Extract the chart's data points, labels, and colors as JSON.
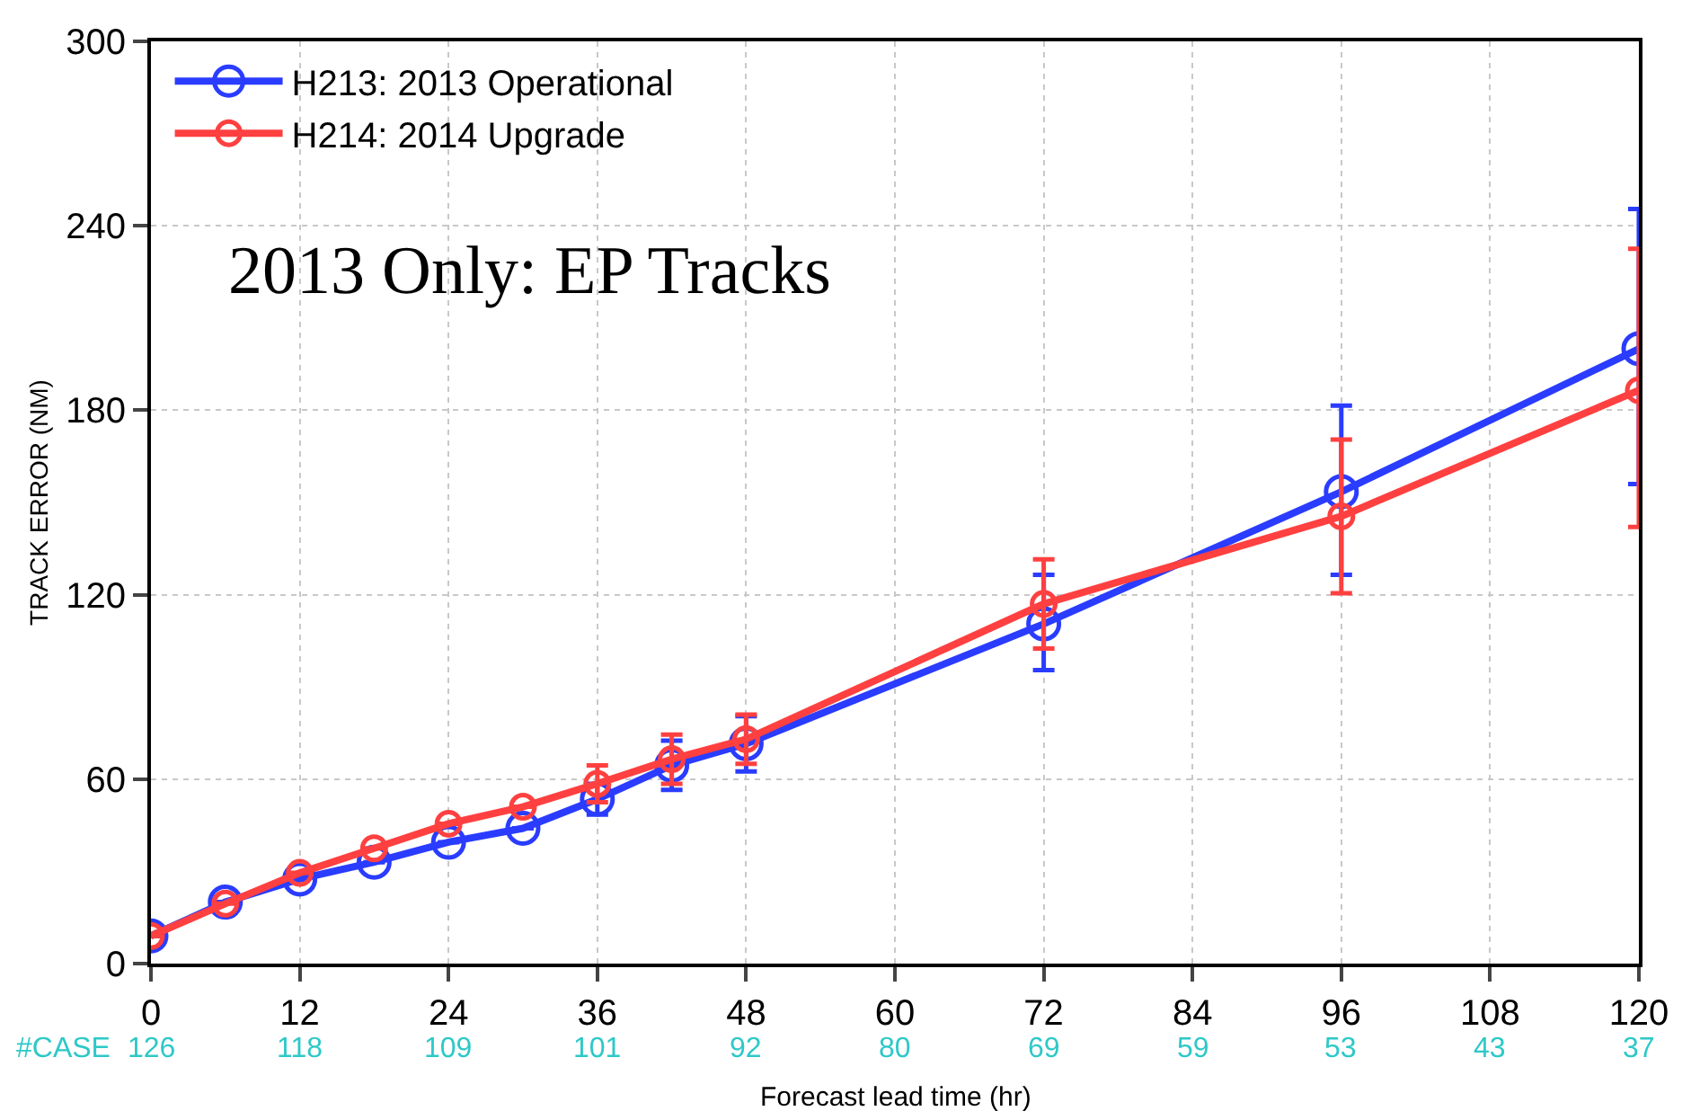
{
  "chart_data": {
    "type": "line",
    "title": "2013 Only: EP Tracks",
    "xlabel": "Forecast lead time (hr)",
    "ylabel": "TRACK ERROR (NM)",
    "x": [
      0,
      6,
      12,
      18,
      24,
      30,
      36,
      42,
      48,
      72,
      96,
      120
    ],
    "series": [
      {
        "name": "H213: 2013 Operational",
        "color": "#2a3cff",
        "values": [
          9,
          20,
          27.5,
          33,
          39.5,
          44,
          53.5,
          64.5,
          71.5,
          110.5,
          153.5,
          200
        ],
        "errors": [
          null,
          null,
          null,
          null,
          null,
          null,
          5,
          8,
          9,
          [
            95.5,
            126.5
          ],
          [
            126.5,
            181.5
          ],
          [
            156,
            245.5
          ]
        ]
      },
      {
        "name": "H214: 2014 Upgrade",
        "color": "#ff4040",
        "values": [
          9,
          19.5,
          29.5,
          37.5,
          45.5,
          51,
          58.5,
          66.5,
          73,
          117,
          145.5,
          186.5
        ],
        "errors": [
          null,
          null,
          null,
          null,
          null,
          null,
          6,
          8,
          8,
          [
            102.5,
            131.5
          ],
          [
            120.5,
            170.5
          ],
          [
            142,
            232.5
          ]
        ]
      }
    ],
    "annotations": [
      "#CASE",
      "126",
      "118",
      "109",
      "101",
      "92",
      "80",
      "69",
      "59",
      "53",
      "43",
      "37"
    ],
    "xlim": [
      0,
      120
    ],
    "xticks": [
      0,
      12,
      24,
      36,
      48,
      60,
      72,
      84,
      96,
      108,
      120
    ],
    "ylim": [
      0,
      300
    ],
    "yticks": [
      0,
      60,
      120,
      180,
      240,
      300
    ],
    "grid": true,
    "legend": "top left",
    "marker": "circle",
    "line_style": "solid"
  }
}
